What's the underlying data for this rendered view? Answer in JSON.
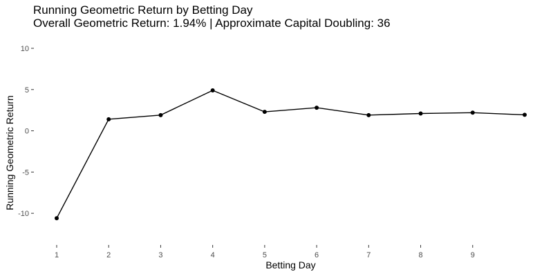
{
  "chart_data": {
    "type": "line",
    "title": "Running Geometric Return by Betting Day",
    "subtitle": "Overall Geometric Return: 1.94% | Approximate Capital Doubling: 36",
    "xlabel": "Betting Day",
    "ylabel": "Running Geometric Return",
    "x_ticks": [
      1,
      2,
      3,
      4,
      5,
      6,
      7,
      8,
      9
    ],
    "y_ticks": [
      10,
      5,
      0,
      -5,
      -10
    ],
    "xlim": [
      1,
      10
    ],
    "ylim": [
      -13,
      10
    ],
    "grid": false,
    "series": [
      {
        "x": [
          1,
          2,
          3,
          4,
          5,
          6,
          7,
          8,
          9,
          10
        ],
        "values": [
          -10.6,
          1.4,
          1.9,
          4.9,
          2.3,
          2.8,
          1.9,
          2.1,
          2.2,
          1.94
        ]
      }
    ],
    "line_color": "#000000",
    "point_color": "#000000"
  }
}
